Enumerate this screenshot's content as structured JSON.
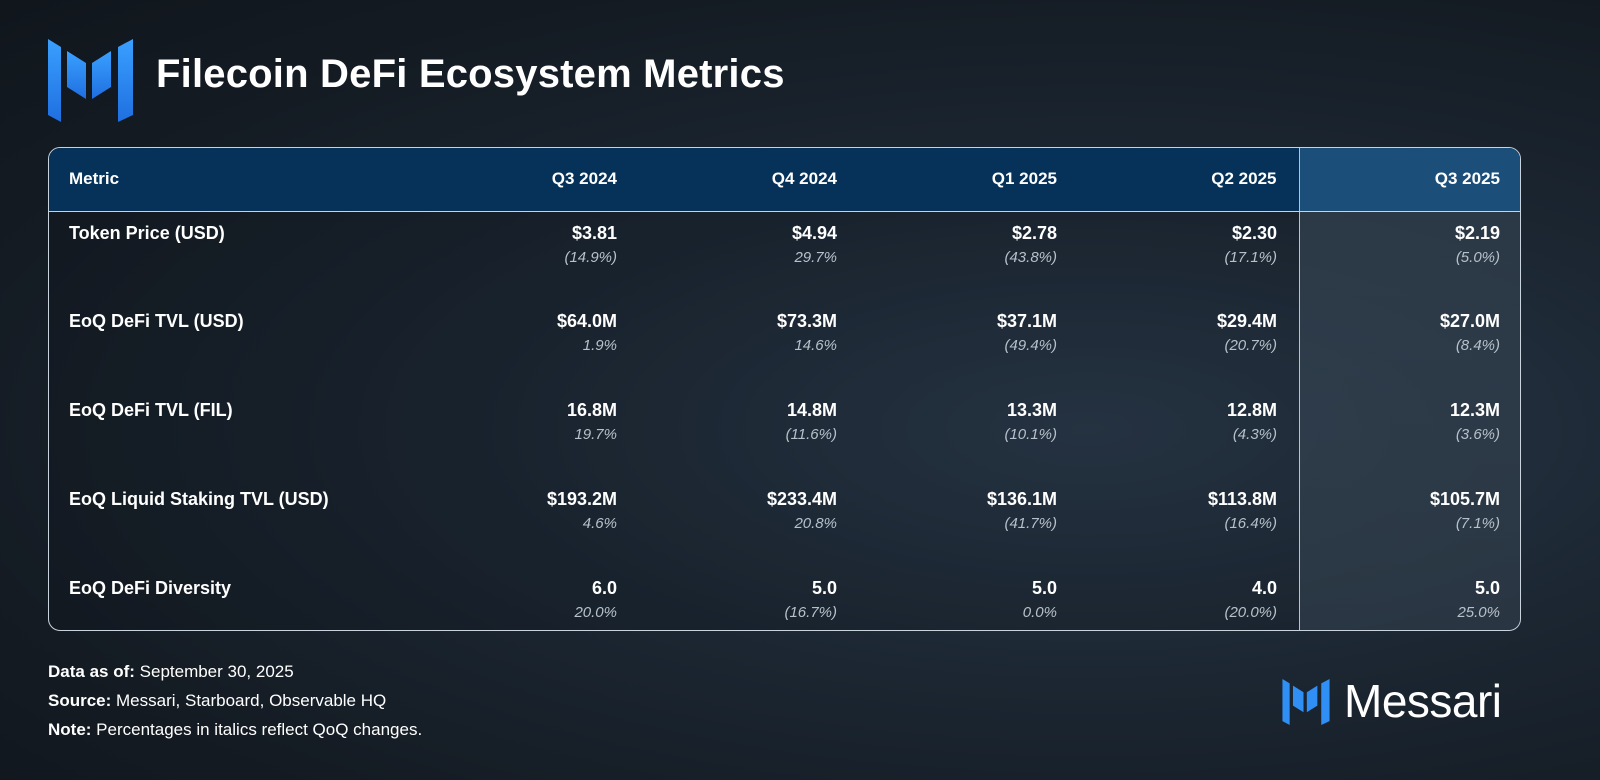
{
  "title": "Filecoin DeFi Ecosystem Metrics",
  "brand": {
    "name": "Messari",
    "accent": "#2f8ff4"
  },
  "table": {
    "headers": [
      "Metric",
      "Q3 2024",
      "Q4 2024",
      "Q1 2025",
      "Q2 2025",
      "Q3 2025"
    ],
    "rows": [
      {
        "metric": "Token Price (USD)",
        "values": [
          "$3.81",
          "$4.94",
          "$2.78",
          "$2.30",
          "$2.19"
        ],
        "changes": [
          "(14.9%)",
          "29.7%",
          "(43.8%)",
          "(17.1%)",
          "(5.0%)"
        ]
      },
      {
        "metric": "EoQ DeFi TVL (USD)",
        "values": [
          "$64.0M",
          "$73.3M",
          "$37.1M",
          "$29.4M",
          "$27.0M"
        ],
        "changes": [
          "1.9%",
          "14.6%",
          "(49.4%)",
          "(20.7%)",
          "(8.4%)"
        ]
      },
      {
        "metric": "EoQ DeFi TVL (FIL)",
        "values": [
          "16.8M",
          "14.8M",
          "13.3M",
          "12.8M",
          "12.3M"
        ],
        "changes": [
          "19.7%",
          "(11.6%)",
          "(10.1%)",
          "(4.3%)",
          "(3.6%)"
        ]
      },
      {
        "metric": "EoQ Liquid Staking TVL (USD)",
        "values": [
          "$193.2M",
          "$233.4M",
          "$136.1M",
          "$113.8M",
          "$105.7M"
        ],
        "changes": [
          "4.6%",
          "20.8%",
          "(41.7%)",
          "(16.4%)",
          "(7.1%)"
        ]
      },
      {
        "metric": "EoQ DeFi Diversity",
        "values": [
          "6.0",
          "5.0",
          "5.0",
          "4.0",
          "5.0"
        ],
        "changes": [
          "20.0%",
          "(16.7%)",
          "0.0%",
          "(20.0%)",
          "25.0%"
        ]
      }
    ]
  },
  "footer": {
    "data_as_of_label": "Data as of:",
    "data_as_of_value": " September 30, 2025",
    "source_label": "Source:",
    "source_value": " Messari, Starboard, Observable HQ",
    "note_label": "Note:",
    "note_value": " Percentages in italics reflect QoQ changes."
  },
  "chart_data": {
    "type": "table",
    "title": "Filecoin DeFi Ecosystem Metrics",
    "columns": [
      "Metric",
      "Q3 2024",
      "Q4 2024",
      "Q1 2025",
      "Q2 2025",
      "Q3 2025"
    ],
    "series": [
      {
        "name": "Token Price (USD)",
        "values": [
          3.81,
          4.94,
          2.78,
          2.3,
          2.19
        ],
        "qoq_change_pct": [
          -14.9,
          29.7,
          -43.8,
          -17.1,
          -5.0
        ]
      },
      {
        "name": "EoQ DeFi TVL (USD)",
        "values": [
          64.0,
          73.3,
          37.1,
          29.4,
          27.0
        ],
        "unit": "$M",
        "qoq_change_pct": [
          1.9,
          14.6,
          -49.4,
          -20.7,
          -8.4
        ]
      },
      {
        "name": "EoQ DeFi TVL (FIL)",
        "values": [
          16.8,
          14.8,
          13.3,
          12.8,
          12.3
        ],
        "unit": "M FIL",
        "qoq_change_pct": [
          19.7,
          -11.6,
          -10.1,
          -4.3,
          -3.6
        ]
      },
      {
        "name": "EoQ Liquid Staking TVL (USD)",
        "values": [
          193.2,
          233.4,
          136.1,
          113.8,
          105.7
        ],
        "unit": "$M",
        "qoq_change_pct": [
          4.6,
          20.8,
          -41.7,
          -16.4,
          -7.1
        ]
      },
      {
        "name": "EoQ DeFi Diversity",
        "values": [
          6.0,
          5.0,
          5.0,
          4.0,
          5.0
        ],
        "qoq_change_pct": [
          20.0,
          -16.7,
          0.0,
          -20.0,
          25.0
        ]
      }
    ],
    "highlighted_column": "Q3 2025"
  }
}
